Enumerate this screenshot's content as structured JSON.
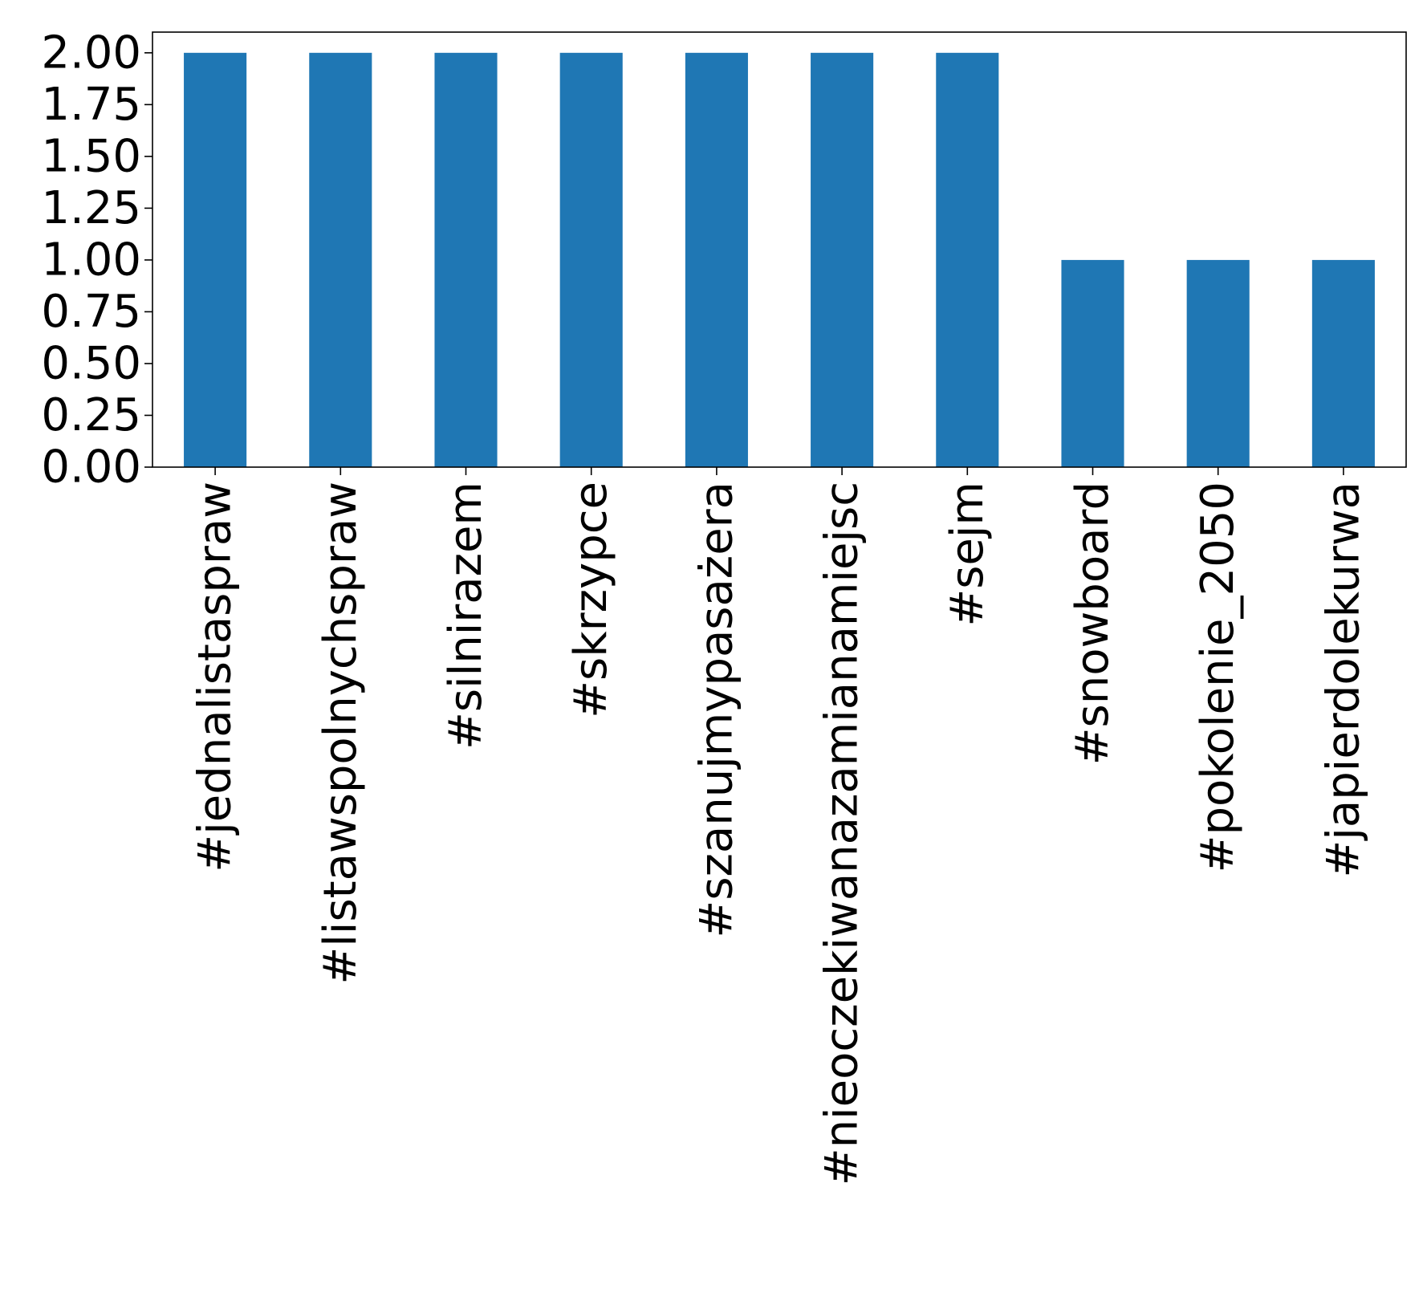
{
  "chart_data": {
    "type": "bar",
    "title": "",
    "xlabel": "",
    "ylabel": "",
    "categories": [
      "#jednalistaspraw",
      "#listawspolnychspraw",
      "#silnirazem",
      "#skrzypce",
      "#szanujmypasażera",
      "#nieoczekiwanazamianamiejsc",
      "#sejm",
      "#snowboard",
      "#pokolenie_2050",
      "#japierdolekurwa"
    ],
    "values": [
      2,
      2,
      2,
      2,
      2,
      2,
      2,
      1,
      1,
      1
    ],
    "ylim": [
      0,
      2.1
    ],
    "yticks": [
      "0.00",
      "0.25",
      "0.50",
      "0.75",
      "1.00",
      "1.25",
      "1.50",
      "1.75",
      "2.00"
    ],
    "grid": false,
    "legend": "none",
    "colors": {
      "bar": "#1f77b4",
      "axis": "#000000"
    }
  }
}
